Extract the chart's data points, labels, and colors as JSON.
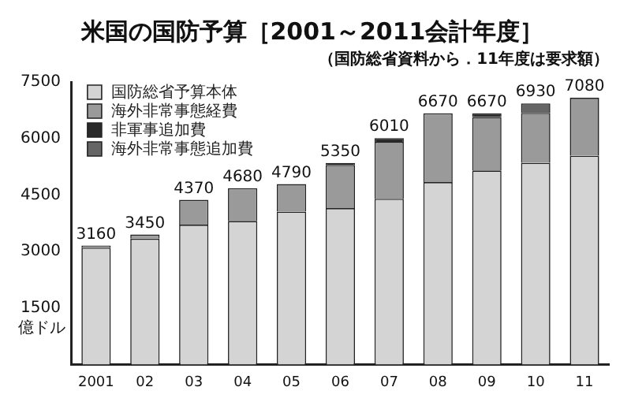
{
  "chart_data": {
    "type": "bar",
    "title": "米国の国防予算［2001～2011会計年度］",
    "subtitle": "（国防総省資料から．11年度は要求額）",
    "ylabel": "億ドル",
    "categories": [
      "2001",
      "02",
      "03",
      "04",
      "05",
      "06",
      "07",
      "08",
      "09",
      "10",
      "11"
    ],
    "stacked": true,
    "series": [
      {
        "name": "国防総省予算本体",
        "color": "#d4d4d4",
        "values": [
          3100,
          3340,
          3710,
          3810,
          4060,
          4150,
          4400,
          4840,
          5150,
          5350,
          5540
        ]
      },
      {
        "name": "海外非常事態経費",
        "color": "#9a9a9a",
        "values": [
          60,
          110,
          660,
          870,
          730,
          1150,
          1510,
          1830,
          1420,
          1330,
          1540
        ]
      },
      {
        "name": "非軍事追加費",
        "color": "#2a2a2a",
        "values": [
          0,
          0,
          0,
          0,
          0,
          50,
          100,
          0,
          100,
          0,
          0
        ]
      },
      {
        "name": "海外非常事態追加費",
        "color": "#666666",
        "values": [
          0,
          0,
          0,
          0,
          0,
          0,
          0,
          0,
          0,
          250,
          0
        ]
      }
    ],
    "totals": [
      "3160",
      "3450",
      "4370",
      "4680",
      "4790",
      "5350",
      "6010",
      "6670",
      "6670",
      "6930",
      "7080"
    ],
    "ylim": [
      0,
      7500
    ],
    "yticks": [
      1500,
      3000,
      4500,
      6000,
      7500
    ],
    "grid": false,
    "legend": "top left"
  }
}
